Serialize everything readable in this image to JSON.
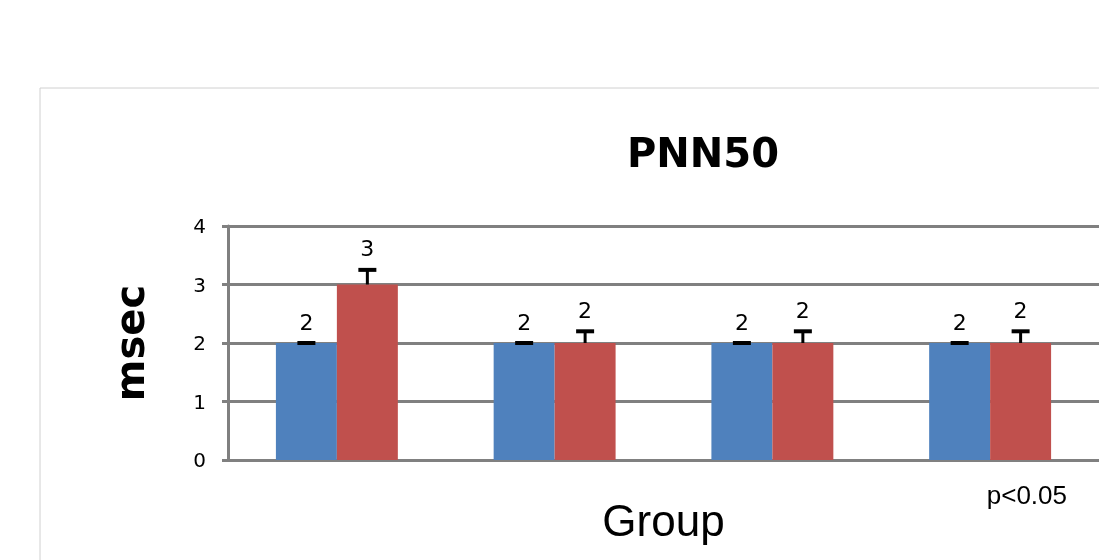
{
  "chart_data": {
    "type": "bar",
    "title": "PNN50",
    "xlabel": "Group",
    "ylabel": "msec",
    "categories": [
      null,
      null,
      null,
      null
    ],
    "series": [
      {
        "color": "#4f81bd",
        "values": [
          2,
          2,
          2,
          2
        ],
        "errors": [
          0,
          0,
          0,
          0
        ]
      },
      {
        "color": "#c0504d",
        "values": [
          3,
          2,
          2,
          2
        ],
        "errors": [
          0.25,
          0.2,
          0.2,
          0.2
        ]
      }
    ],
    "ylim": [
      0,
      4
    ],
    "yticks": [
      0,
      1,
      2,
      3,
      4
    ],
    "grid": "y",
    "data_labels": true,
    "annotations": [
      "p<0.05"
    ]
  }
}
